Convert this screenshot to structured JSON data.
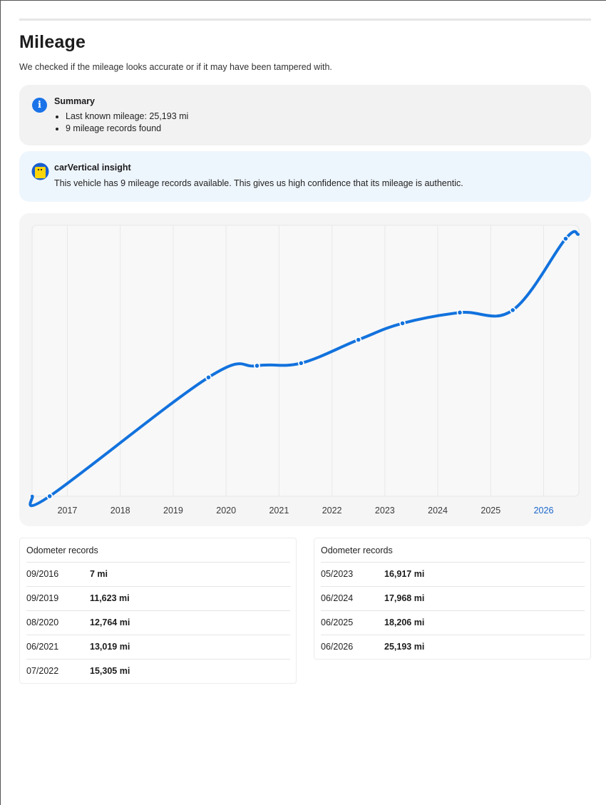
{
  "page": {
    "title": "Mileage",
    "subtitle": "We checked if the mileage looks accurate or if it may have been tampered with."
  },
  "summary": {
    "title": "Summary",
    "items": [
      "Last known mileage: 25,193 mi",
      "9 mileage records found"
    ],
    "icon": "info-icon"
  },
  "insight": {
    "title": "carVertical insight",
    "text": "This vehicle has 9 mileage records available. This gives us high confidence that its mileage is authentic.",
    "icon": "carvertical-logo-icon"
  },
  "chart_data": {
    "type": "line",
    "title": "",
    "xlabel": "",
    "ylabel": "",
    "x_ticks": [
      "2017",
      "2018",
      "2019",
      "2020",
      "2021",
      "2022",
      "2023",
      "2024",
      "2025",
      "2026"
    ],
    "highlighted_tick": "2026",
    "series": [
      {
        "unit": "mi",
        "x": [
          "09/2016",
          "09/2019",
          "08/2020",
          "06/2021",
          "07/2022",
          "05/2023",
          "06/2024",
          "06/2025",
          "06/2026"
        ],
        "values": [
          7,
          11623,
          12764,
          13019,
          15305,
          16917,
          17968,
          18206,
          25193
        ]
      }
    ],
    "ylim": [
      0,
      26500
    ],
    "xlim": [
      "05/2016",
      "09/2026"
    ],
    "grid": true,
    "colors": {
      "line": "#1272dd",
      "highlight_tick": "#1a66c9"
    }
  },
  "records": {
    "header": "Odometer records",
    "left": [
      {
        "date": "09/2016",
        "value": "7 mi"
      },
      {
        "date": "09/2019",
        "value": "11,623 mi"
      },
      {
        "date": "08/2020",
        "value": "12,764 mi"
      },
      {
        "date": "06/2021",
        "value": "13,019 mi"
      },
      {
        "date": "07/2022",
        "value": "15,305 mi"
      }
    ],
    "right": [
      {
        "date": "05/2023",
        "value": "16,917 mi"
      },
      {
        "date": "06/2024",
        "value": "17,968 mi"
      },
      {
        "date": "06/2025",
        "value": "18,206 mi"
      },
      {
        "date": "06/2026",
        "value": "25,193 mi"
      }
    ]
  }
}
